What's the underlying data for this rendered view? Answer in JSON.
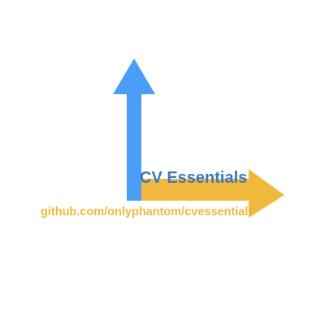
{
  "brand": {
    "title": "CV Essentials",
    "url": "github.com/onlyphantom/cvessentials"
  },
  "colors": {
    "background": "#ffffff",
    "vertical_arrow": "#4a9ef5",
    "horizontal_arrow": "#f0b93e",
    "title_text": "#3a78c4",
    "url_text": "#f0b93e"
  },
  "icons": {
    "vertical_arrow": "up-arrow-icon",
    "horizontal_arrow": "right-arrow-icon"
  }
}
